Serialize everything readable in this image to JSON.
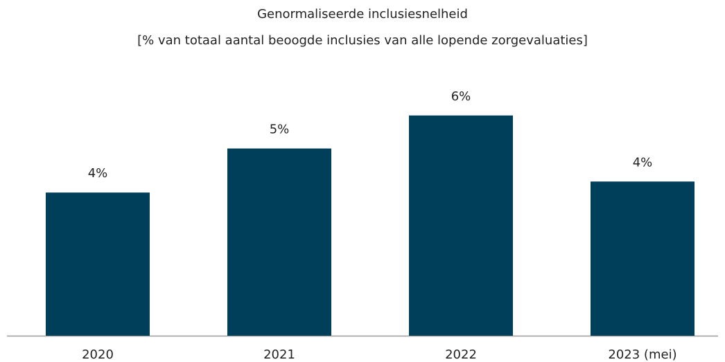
{
  "chart_data": {
    "type": "bar",
    "title": "Genormaliseerde inclusiesnelheid",
    "subtitle": "[% van totaal aantal beoogde inclusies van alle lopende zorgevaluaties]",
    "categories": [
      "2020",
      "2021",
      "2022",
      "2023 (mei)"
    ],
    "values": [
      3.9,
      5.1,
      6.0,
      4.2
    ],
    "value_labels": [
      "4%",
      "5%",
      "6%",
      "4%"
    ],
    "color": "#003f5a",
    "ylim": [
      0,
      6.6
    ]
  }
}
